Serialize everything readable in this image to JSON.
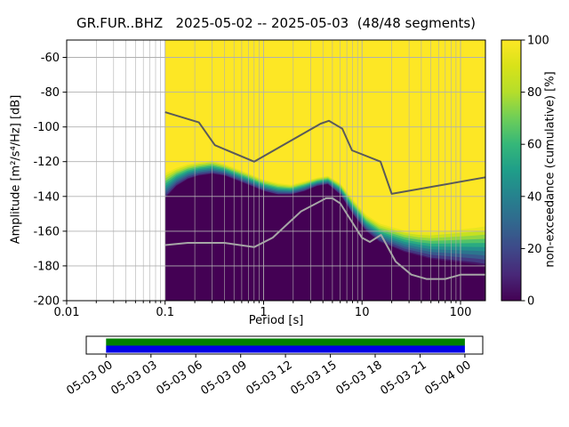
{
  "title": "GR.FUR..BHZ   2025-05-02 -- 2025-05-03  (48/48 segments)",
  "axes": {
    "xlabel": "Period [s]",
    "ylabel": "Amplitude [m²/s⁴/Hz] [dB]",
    "xticks": [
      {
        "value": 0.01,
        "label": "0.01"
      },
      {
        "value": 0.1,
        "label": "0.1"
      },
      {
        "value": 1,
        "label": "1"
      },
      {
        "value": 10,
        "label": "10"
      },
      {
        "value": 100,
        "label": "100"
      }
    ],
    "yticks": [
      -200,
      -180,
      -160,
      -140,
      -120,
      -100,
      -80,
      -60
    ]
  },
  "colorbar": {
    "label": "non-exceedance (cumulative) [%]",
    "ticks": [
      0,
      20,
      40,
      60,
      80,
      100
    ]
  },
  "chart_data": {
    "type": "heatmap",
    "title": "GR.FUR..BHZ   2025-05-02 -- 2025-05-03  (48/48 segments)",
    "xlabel": "Period [s]",
    "ylabel": "Amplitude [m²/s⁴/Hz] [dB]",
    "x_axis": {
      "scale": "log",
      "range": [
        0.01,
        179
      ]
    },
    "ylim": [
      -200,
      -50
    ],
    "colorbar_label": "non-exceedance (cumulative) [%]",
    "colorbar_range": [
      0,
      100
    ],
    "distribution": {
      "periods": [
        0.1,
        0.13,
        0.17,
        0.22,
        0.3,
        0.4,
        0.55,
        0.75,
        1.0,
        1.4,
        1.9,
        2.6,
        3.5,
        4.5,
        6.0,
        8.0,
        11,
        15,
        20,
        27,
        37,
        50,
        70,
        100,
        140,
        179
      ],
      "upper_db": [
        -126,
        -123,
        -121,
        -120,
        -119,
        -121,
        -124,
        -127,
        -130,
        -132,
        -133,
        -131,
        -129,
        -128,
        -132,
        -141,
        -150,
        -155,
        -157,
        -159,
        -160,
        -160,
        -159,
        -158,
        -157,
        -156
      ],
      "lower_db": [
        -141,
        -134,
        -130,
        -128,
        -127,
        -128,
        -131,
        -134,
        -137,
        -139,
        -139,
        -137,
        -134,
        -133,
        -139,
        -150,
        -160,
        -166,
        -169,
        -172,
        -174,
        -176,
        -177,
        -178,
        -179,
        -180
      ]
    },
    "noise_models": {
      "high": {
        "periods": [
          0.1,
          0.22,
          0.32,
          0.8,
          3.8,
          4.6,
          6.3,
          7.9,
          15.4,
          20.0,
          179.0
        ],
        "db": [
          -91.5,
          -97.4,
          -110.5,
          -120.0,
          -98.1,
          -96.5,
          -101.0,
          -113.5,
          -120.0,
          -138.5,
          -129.0
        ]
      },
      "low": {
        "periods": [
          0.1,
          0.17,
          0.4,
          0.8,
          1.24,
          2.4,
          4.3,
          5.0,
          6.0,
          10.0,
          12.0,
          15.6,
          21.9,
          31.6,
          45.0,
          70.0,
          101.0,
          179.0
        ],
        "db": [
          -168.0,
          -166.7,
          -166.7,
          -169.2,
          -163.7,
          -148.6,
          -141.1,
          -141.1,
          -144.0,
          -163.8,
          -166.2,
          -162.1,
          -177.5,
          -185.0,
          -187.5,
          -187.5,
          -185.0,
          -185.0
        ]
      }
    }
  },
  "timeline": {
    "tick_labels": [
      "05-03 00",
      "05-03 03",
      "05-03 06",
      "05-03 09",
      "05-03 12",
      "05-03 15",
      "05-03 18",
      "05-03 21",
      "05-04 00"
    ]
  },
  "colors": {
    "viridis": [
      [
        0,
        "#440154"
      ],
      [
        0.1,
        "#482878"
      ],
      [
        0.2,
        "#3e4989"
      ],
      [
        0.3,
        "#31688e"
      ],
      [
        0.4,
        "#26828e"
      ],
      [
        0.5,
        "#1f9e89"
      ],
      [
        0.6,
        "#35b779"
      ],
      [
        0.7,
        "#6ece58"
      ],
      [
        0.8,
        "#b5de2b"
      ],
      [
        0.9,
        "#d8e219"
      ],
      [
        1,
        "#fde725"
      ]
    ],
    "grid": "#b0b0b0",
    "nhnm_line": "#5a5a5a",
    "nlnm_line": "#a6a6a6",
    "timeline_green": "#008000",
    "timeline_blue": "#0000e6",
    "dark_fill": "#440154",
    "yellow_fill": "#fde725"
  }
}
